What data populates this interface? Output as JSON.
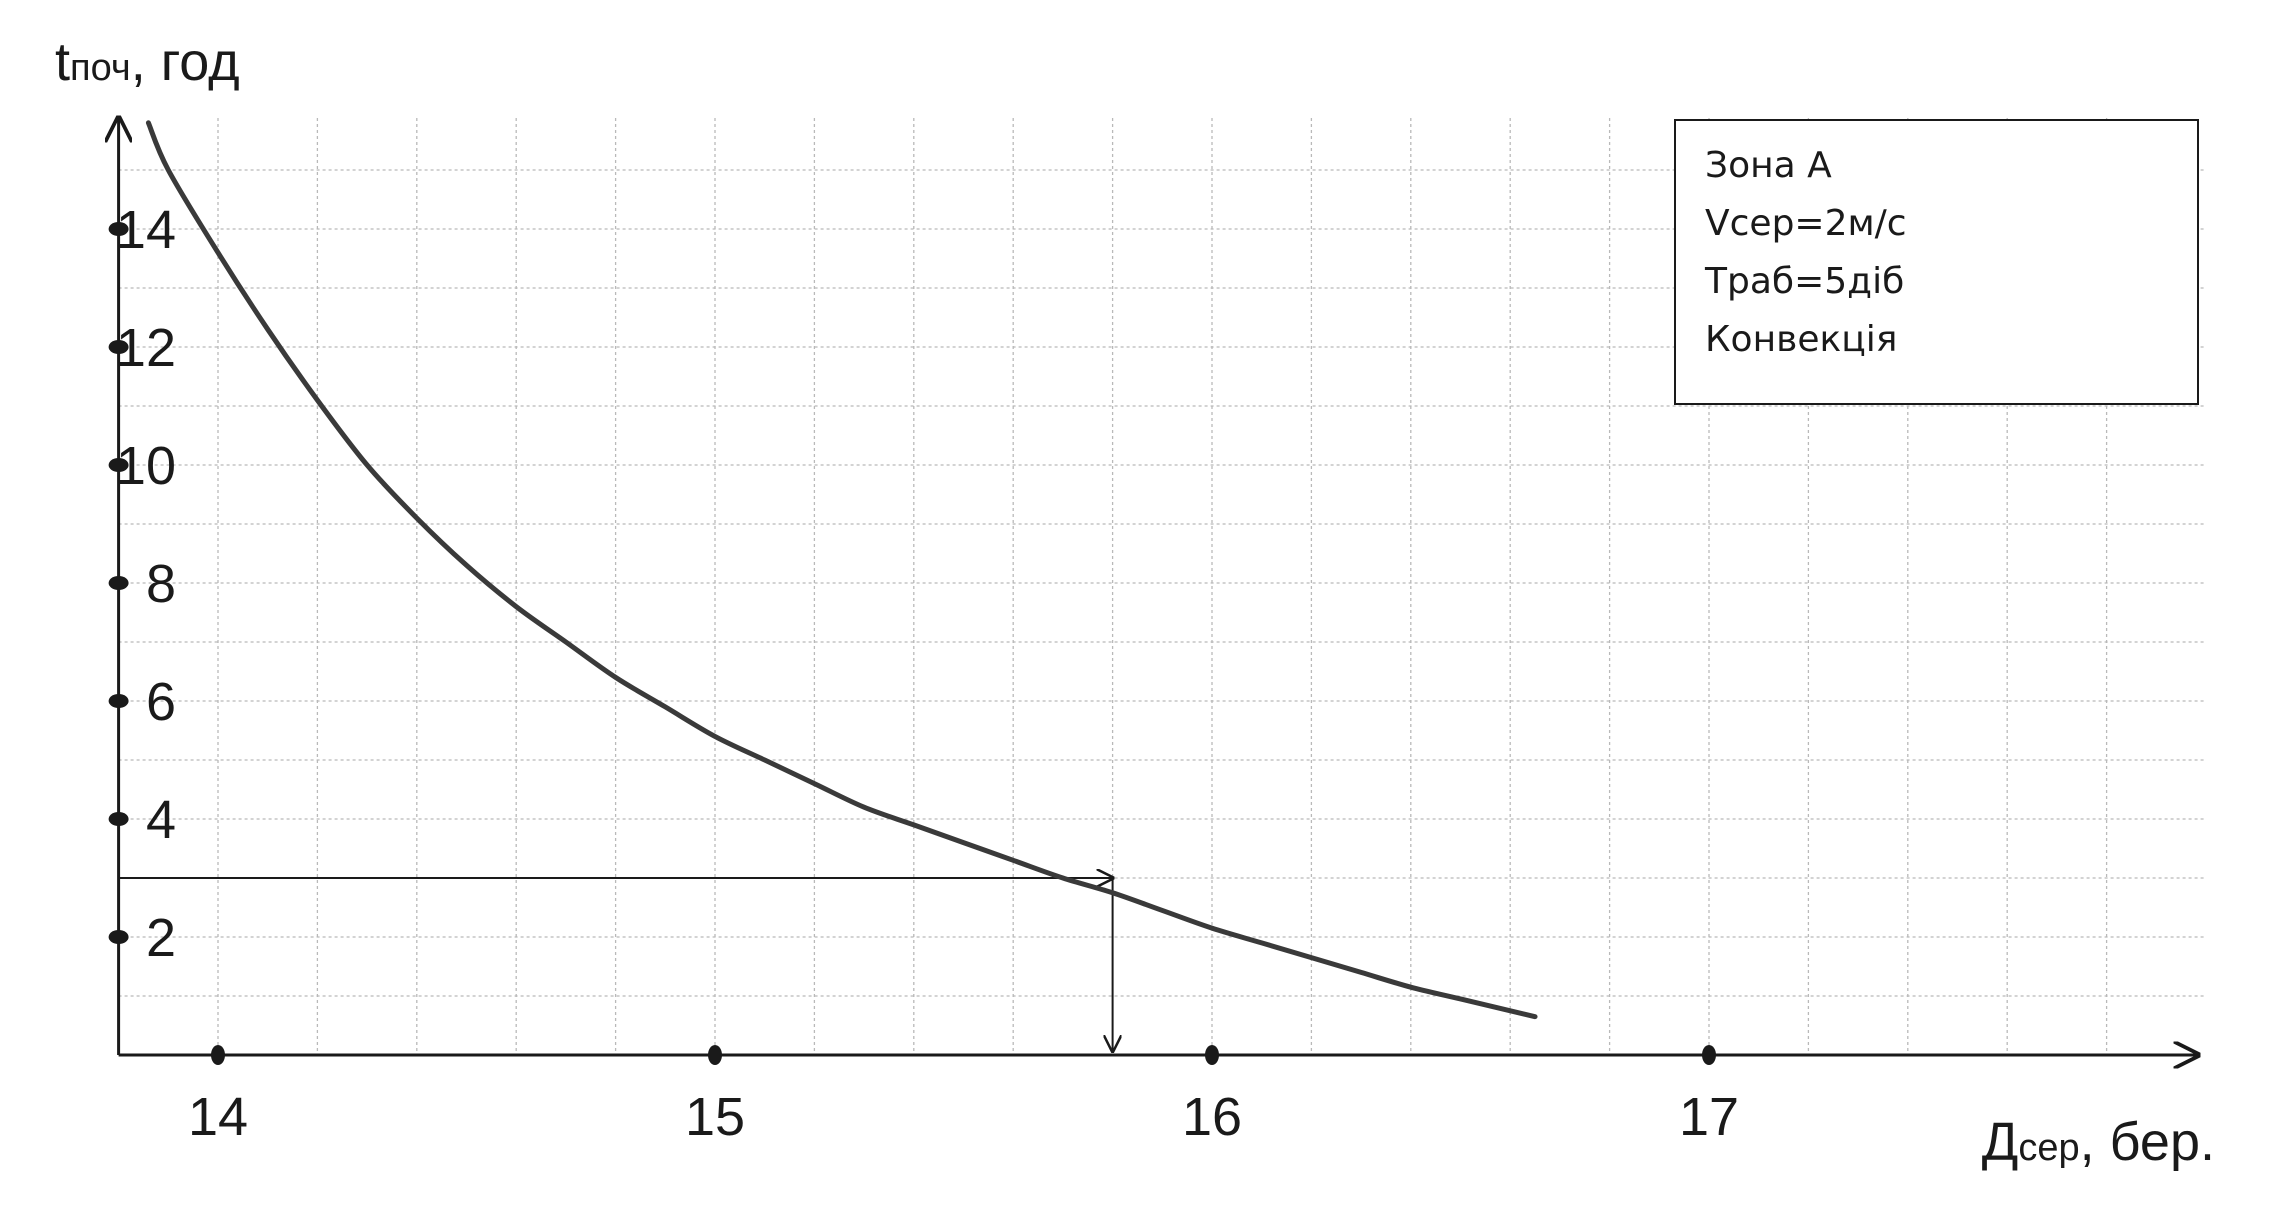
{
  "chart_data": {
    "type": "line",
    "title": "",
    "ylabel": "t",
    "ylabel_sub": "поч",
    "ylabel_unit": ", год",
    "xlabel": "Д",
    "xlabel_sub": "сер",
    "xlabel_unit": ", бер.",
    "xlim": [
      13.8,
      17.8
    ],
    "ylim": [
      0,
      16
    ],
    "grid": true,
    "x_ticks": [
      14,
      15,
      16,
      17
    ],
    "y_ticks": [
      2,
      4,
      6,
      8,
      10,
      12,
      14
    ],
    "series": [
      {
        "x": [
          13.86,
          13.9,
          14.0,
          14.1,
          14.2,
          14.3,
          14.4,
          14.5,
          14.6,
          14.7,
          14.8,
          14.9,
          15.0,
          15.1,
          15.2,
          15.3,
          15.4,
          15.5,
          15.6,
          15.7,
          15.8,
          15.9,
          16.0,
          16.1,
          16.2,
          16.3,
          16.4,
          16.5,
          16.65
        ],
        "y": [
          15.8,
          15.0,
          13.6,
          12.3,
          11.1,
          10.0,
          9.1,
          8.3,
          7.6,
          7.0,
          6.4,
          5.9,
          5.4,
          5.0,
          4.6,
          4.2,
          3.9,
          3.6,
          3.3,
          3.0,
          2.75,
          2.45,
          2.15,
          1.9,
          1.65,
          1.4,
          1.15,
          0.95,
          0.65
        ]
      }
    ],
    "annotation": {
      "x": 15.8,
      "y": 3.0
    },
    "legend": {
      "placement": "top-right",
      "lines": [
        "Зона А",
        "Vсер=2м/с",
        "Траб=5діб",
        "Конвекція"
      ]
    }
  }
}
